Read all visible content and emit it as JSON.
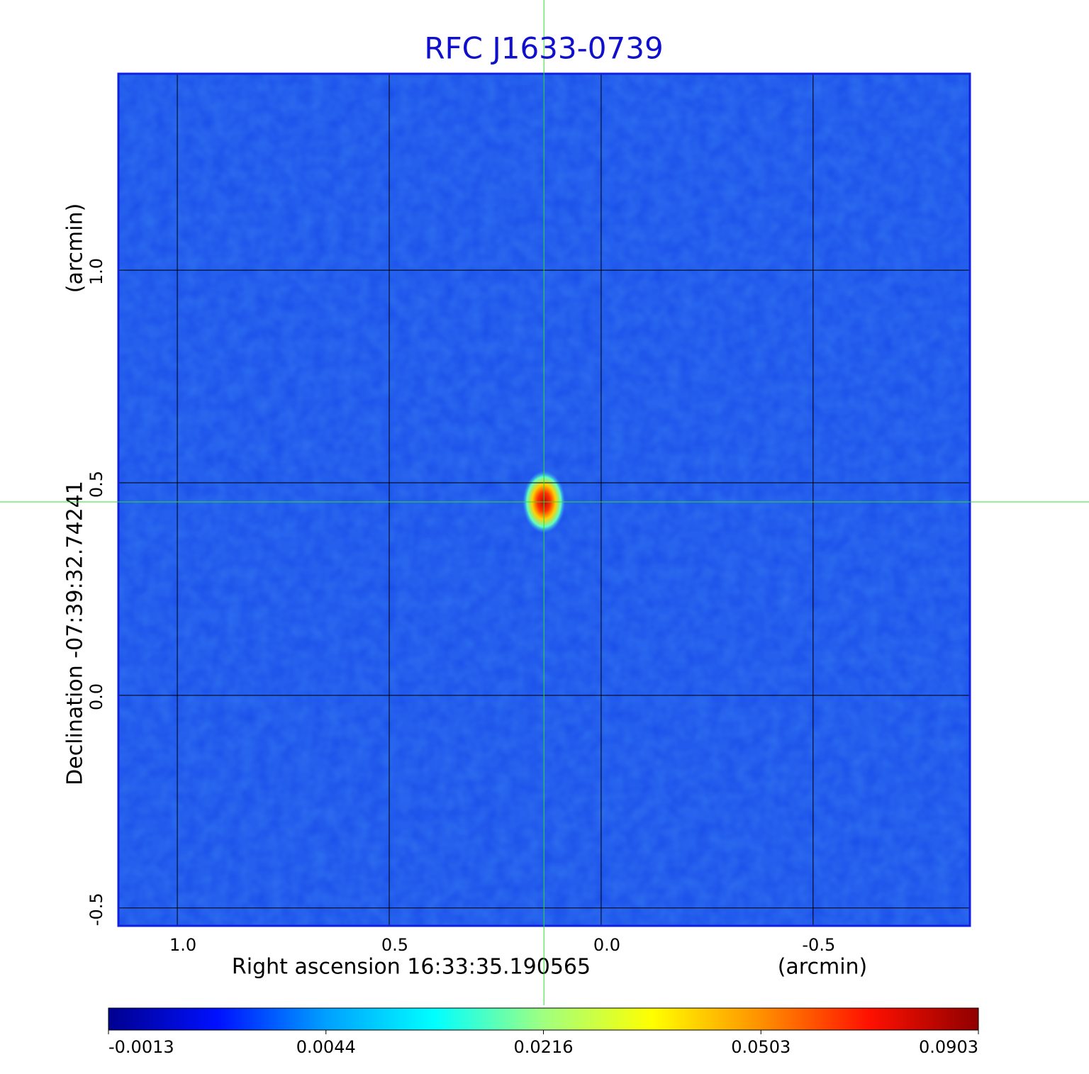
{
  "chart_data": {
    "type": "image",
    "title": "RFC J1633-0739",
    "xlabel": "Right ascension  16:33:35.190565",
    "xunit": "(arcmin)",
    "ylabel": "Declination  -07:39:32.74241",
    "yunit": "(arcmin)",
    "xlim": [
      1.139,
      -0.87
    ],
    "ylim": [
      -0.542,
      1.462
    ],
    "xticks": [
      {
        "value": 1,
        "label": "1.0"
      },
      0.5,
      {
        "value": 0,
        "label": "0.0"
      },
      -0.5
    ],
    "yticks": [
      -0.5,
      {
        "value": 0,
        "label": "0.0"
      },
      0.5,
      {
        "value": 1,
        "label": "1.0"
      }
    ],
    "grid": true,
    "field_color": "#1c52ea",
    "marker": {
      "x": 0.135,
      "y": 0.455,
      "color": "#33dd33"
    },
    "colorbar": {
      "ticks": [
        -0.0013,
        0.0044,
        0.0216,
        0.0503,
        0.0903
      ],
      "colors": [
        "#00008f",
        "#0010ff",
        "#00a0ff",
        "#00ffff",
        "#a0ff80",
        "#ffff00",
        "#ff9000",
        "#ff1000",
        "#8f0000"
      ]
    }
  }
}
